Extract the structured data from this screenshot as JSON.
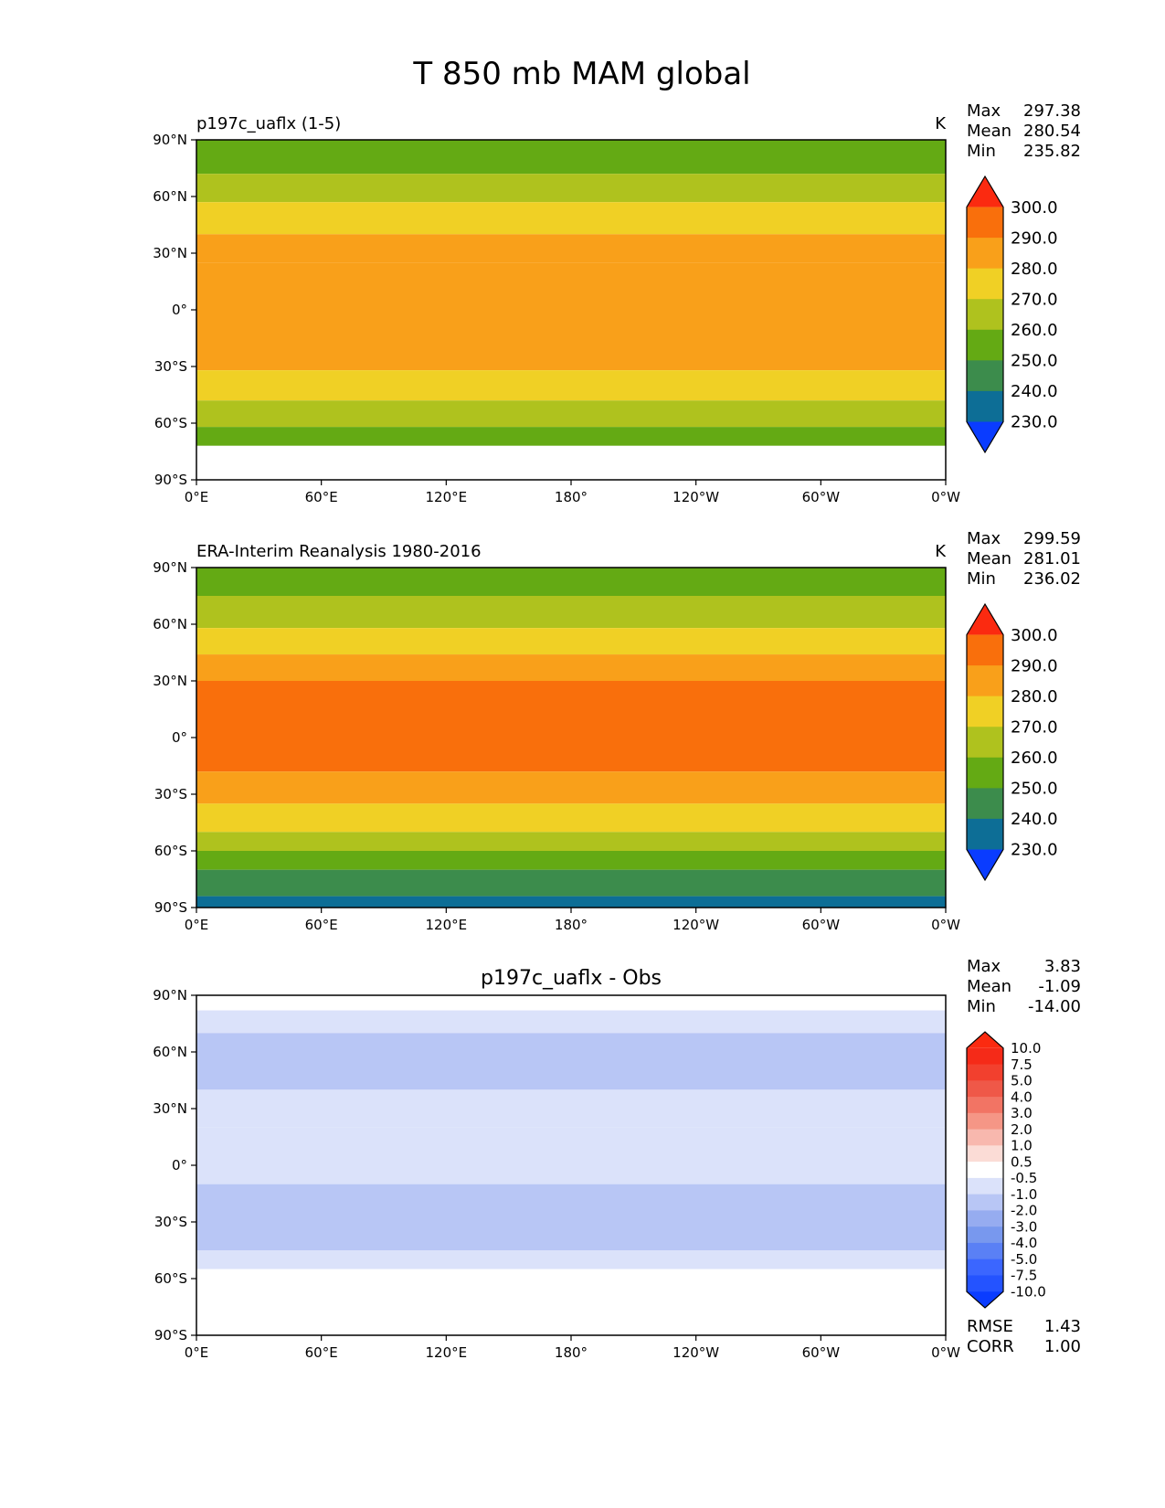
{
  "title": "T 850 mb MAM global",
  "chart_data": [
    {
      "type": "heatmap",
      "panel": "test",
      "left_title": "p197c_uaflx (1-5)",
      "center_title": "",
      "units": "K",
      "stats": {
        "labels": [
          "Max",
          "Mean",
          "Min"
        ],
        "values": [
          "297.38",
          "280.54",
          "235.82"
        ]
      },
      "x_ticks": [
        "0°E",
        "60°E",
        "120°E",
        "180°",
        "120°W",
        "60°W",
        "0°W"
      ],
      "y_ticks": [
        "90°N",
        "60°N",
        "30°N",
        "0°",
        "30°S",
        "60°S",
        "90°S"
      ],
      "colorbar": {
        "levels": [
          "230.0",
          "240.0",
          "250.0",
          "260.0",
          "270.0",
          "280.0",
          "290.0",
          "300.0"
        ],
        "colors": [
          "#0a3cff",
          "#0d6e96",
          "#3c8c4c",
          "#64aa14",
          "#afc21e",
          "#f0d025",
          "#f9a01a",
          "#f96f0c",
          "#fb2a10"
        ],
        "extend": "both"
      },
      "bands": [
        {
          "lat_top": 90,
          "lat_bot": 72,
          "color": "#64aa14"
        },
        {
          "lat_top": 72,
          "lat_bot": 57,
          "color": "#afc21e"
        },
        {
          "lat_top": 57,
          "lat_bot": 40,
          "color": "#f0d025"
        },
        {
          "lat_top": 40,
          "lat_bot": 25,
          "color": "#f9a01a"
        },
        {
          "lat_top": 25,
          "lat_bot": -15,
          "color": "#f9a01a"
        },
        {
          "lat_top": -15,
          "lat_bot": -32,
          "color": "#f9a01a"
        },
        {
          "lat_top": -32,
          "lat_bot": -48,
          "color": "#f0d025"
        },
        {
          "lat_top": -48,
          "lat_bot": -62,
          "color": "#afc21e"
        },
        {
          "lat_top": -62,
          "lat_bot": -72,
          "color": "#64aa14"
        },
        {
          "lat_top": -72,
          "lat_bot": -90,
          "color": "#ffffff"
        }
      ]
    },
    {
      "type": "heatmap",
      "panel": "reference",
      "left_title": "ERA-Interim Reanalysis 1980-2016",
      "center_title": "",
      "units": "K",
      "stats": {
        "labels": [
          "Max",
          "Mean",
          "Min"
        ],
        "values": [
          "299.59",
          "281.01",
          "236.02"
        ]
      },
      "x_ticks": [
        "0°E",
        "60°E",
        "120°E",
        "180°",
        "120°W",
        "60°W",
        "0°W"
      ],
      "y_ticks": [
        "90°N",
        "60°N",
        "30°N",
        "0°",
        "30°S",
        "60°S",
        "90°S"
      ],
      "colorbar": {
        "levels": [
          "230.0",
          "240.0",
          "250.0",
          "260.0",
          "270.0",
          "280.0",
          "290.0",
          "300.0"
        ],
        "colors": [
          "#0a3cff",
          "#0d6e96",
          "#3c8c4c",
          "#64aa14",
          "#afc21e",
          "#f0d025",
          "#f9a01a",
          "#f96f0c",
          "#fb2a10"
        ],
        "extend": "both"
      },
      "bands": [
        {
          "lat_top": 90,
          "lat_bot": 75,
          "color": "#64aa14"
        },
        {
          "lat_top": 75,
          "lat_bot": 58,
          "color": "#afc21e"
        },
        {
          "lat_top": 58,
          "lat_bot": 44,
          "color": "#f0d025"
        },
        {
          "lat_top": 44,
          "lat_bot": 30,
          "color": "#f9a01a"
        },
        {
          "lat_top": 30,
          "lat_bot": -18,
          "color": "#f96f0c"
        },
        {
          "lat_top": -18,
          "lat_bot": -35,
          "color": "#f9a01a"
        },
        {
          "lat_top": -35,
          "lat_bot": -50,
          "color": "#f0d025"
        },
        {
          "lat_top": -50,
          "lat_bot": -60,
          "color": "#afc21e"
        },
        {
          "lat_top": -60,
          "lat_bot": -70,
          "color": "#64aa14"
        },
        {
          "lat_top": -70,
          "lat_bot": -84,
          "color": "#3c8c4c"
        },
        {
          "lat_top": -84,
          "lat_bot": -90,
          "color": "#0d6e96"
        }
      ]
    },
    {
      "type": "heatmap",
      "panel": "difference",
      "left_title": "",
      "center_title": "p197c_uaflx - Obs",
      "units": "",
      "stats": {
        "labels": [
          "Max",
          "Mean",
          "Min"
        ],
        "values": [
          "3.83",
          "-1.09",
          "-14.00"
        ]
      },
      "bottom_stats": {
        "labels": [
          "RMSE",
          "CORR"
        ],
        "values": [
          "1.43",
          "1.00"
        ]
      },
      "x_ticks": [
        "0°E",
        "60°E",
        "120°E",
        "180°",
        "120°W",
        "60°W",
        "0°W"
      ],
      "y_ticks": [
        "90°N",
        "60°N",
        "30°N",
        "0°",
        "30°S",
        "60°S",
        "90°S"
      ],
      "colorbar": {
        "levels": [
          "-10.0",
          "-7.5",
          "-5.0",
          "-4.0",
          "-3.0",
          "-2.0",
          "-1.0",
          "-0.5",
          "0.5",
          "1.0",
          "2.0",
          "3.0",
          "4.0",
          "5.0",
          "7.5",
          "10.0"
        ],
        "colors": [
          "#0a3cff",
          "#2453ff",
          "#3b66ff",
          "#5a80f5",
          "#7898ee",
          "#96acf0",
          "#b8c6f5",
          "#dbe2fa",
          "#ffffff",
          "#fbdcd6",
          "#f8b8ae",
          "#f59686",
          "#f27464",
          "#ef5848",
          "#f2402e",
          "#f52a18",
          "#fb2a10"
        ],
        "extend": "both"
      },
      "bands": [
        {
          "lat_top": 90,
          "lat_bot": 82,
          "color": "#ffffff"
        },
        {
          "lat_top": 82,
          "lat_bot": 70,
          "color": "#dbe2fa"
        },
        {
          "lat_top": 70,
          "lat_bot": 40,
          "color": "#b8c6f5"
        },
        {
          "lat_top": 40,
          "lat_bot": 20,
          "color": "#dbe2fa"
        },
        {
          "lat_top": 20,
          "lat_bot": -10,
          "color": "#dbe2fa"
        },
        {
          "lat_top": -10,
          "lat_bot": -45,
          "color": "#b8c6f5"
        },
        {
          "lat_top": -45,
          "lat_bot": -55,
          "color": "#dbe2fa"
        },
        {
          "lat_top": -55,
          "lat_bot": -90,
          "color": "#ffffff"
        }
      ]
    }
  ]
}
